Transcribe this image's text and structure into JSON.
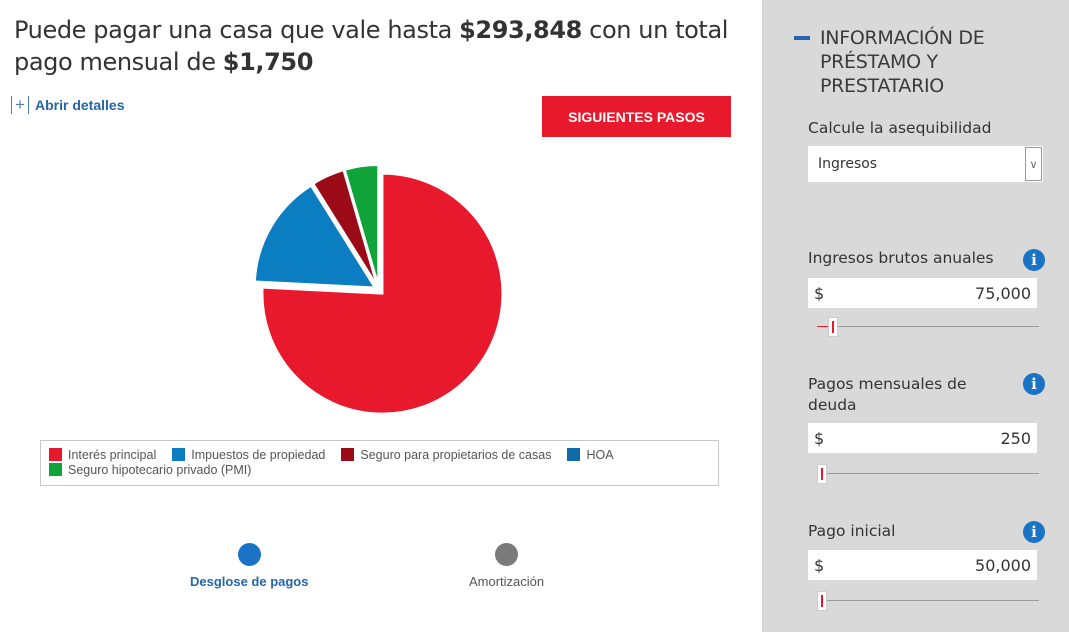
{
  "headline": {
    "prefix": "Puede pagar una casa que vale hasta ",
    "price": "$293,848",
    "middle": " con un total pago mensual de ",
    "monthly": "$1,750"
  },
  "details_toggle": {
    "icon": "+",
    "label": "Abrir detalles"
  },
  "next_steps_label": "SIGUIENTES PASOS",
  "chart_data": {
    "type": "pie",
    "slices": [
      {
        "name": "Interés principal",
        "value": 75.8,
        "color": "#e8192c"
      },
      {
        "name": "Impuestos de propiedad",
        "value": 15.3,
        "color": "#0b7dc1"
      },
      {
        "name": "Seguro para propietarios de casas",
        "value": 4.4,
        "color": "#9b0a17"
      },
      {
        "name": "HOA",
        "value": 0,
        "color": "#0e6aa8"
      },
      {
        "name": "Seguro hipotecario privado (PMI)",
        "value": 4.5,
        "color": "#0fa33a"
      }
    ],
    "legend_rows": [
      [
        "Interés principal",
        "Impuestos de propiedad",
        "Seguro para propietarios de casas",
        "HOA"
      ],
      [
        "Seguro hipotecario privado (PMI)"
      ]
    ],
    "legend_placement": "bottom"
  },
  "view_nav": [
    {
      "label": "Desglose de pagos",
      "color": "#1a73c4",
      "active": true
    },
    {
      "label": "Amortización",
      "color": "#7a7a7a",
      "active": false
    }
  ],
  "sidebar": {
    "title": "INFORMACIÓN DE PRÉSTAMO Y PRESTATARIO",
    "affordability": {
      "label": "Calcule la asequibilidad",
      "value": "Ingresos"
    },
    "fields": [
      {
        "label": "Ingresos brutos anuales",
        "currency": "$",
        "value": "75,000",
        "slider_fraction": 0.05
      },
      {
        "label": "Pagos mensuales de deuda",
        "currency": "$",
        "value": "250",
        "slider_fraction": 0.0
      },
      {
        "label": "Pago inicial",
        "currency": "$",
        "value": "50,000",
        "slider_fraction": 0.0
      }
    ],
    "info_icon": "i"
  }
}
